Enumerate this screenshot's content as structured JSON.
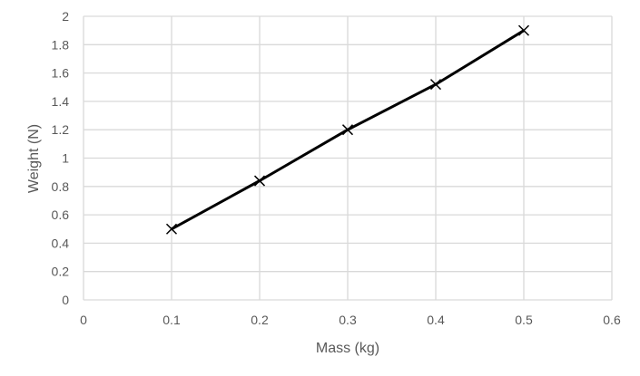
{
  "chart_data": {
    "type": "line",
    "title": "",
    "xlabel": "Mass (kg)",
    "ylabel": "Weight (N)",
    "xlim": [
      0,
      0.6
    ],
    "ylim": [
      0,
      2
    ],
    "xticks": [
      0,
      0.1,
      0.2,
      0.3,
      0.4,
      0.5,
      0.6
    ],
    "xtick_labels": [
      "0",
      "0.1",
      "0.2",
      "0.3",
      "0.4",
      "0.5",
      "0.6"
    ],
    "yticks": [
      0,
      0.2,
      0.4,
      0.6,
      0.8,
      1,
      1.2,
      1.4,
      1.6,
      1.8,
      2
    ],
    "ytick_labels": [
      "0",
      "0.2",
      "0.4",
      "0.6",
      "0.8",
      "1",
      "1.2",
      "1.4",
      "1.6",
      "1.8",
      "2"
    ],
    "grid": true,
    "legend": null,
    "series": [
      {
        "name": "Weight",
        "marker": "x",
        "color": "#000000",
        "x": [
          0.1,
          0.2,
          0.3,
          0.4,
          0.5
        ],
        "y": [
          0.5,
          0.84,
          1.2,
          1.52,
          1.9
        ]
      }
    ]
  },
  "colors": {
    "grid": "#d9d9d9",
    "axis_text": "#595959",
    "line": "#000000"
  }
}
